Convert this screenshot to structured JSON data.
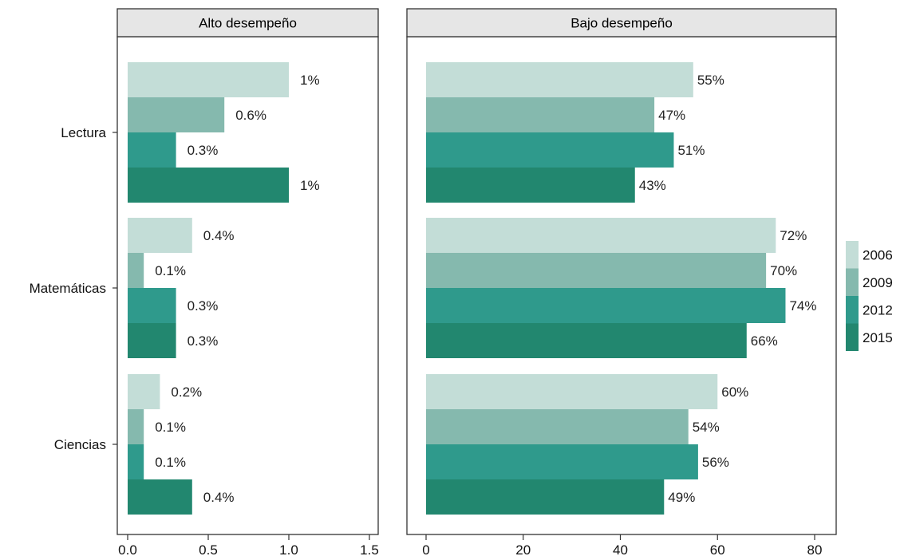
{
  "chart_data": {
    "type": "bar",
    "orientation": "horizontal",
    "categories": [
      "Lectura",
      "Matemáticas",
      "Ciencias"
    ],
    "series_names": [
      "2006",
      "2009",
      "2012",
      "2015"
    ],
    "colors": [
      "#c3ddd7",
      "#85b9ae",
      "#2f9a8c",
      "#22876f"
    ],
    "panels": [
      {
        "title": "Alto desempeño",
        "xlim": [
          0,
          1.5
        ],
        "ticks": [
          0.0,
          0.5,
          1.0,
          1.5
        ],
        "tick_labels": [
          "0.0",
          "0.5",
          "1.0",
          "1.5"
        ],
        "values": [
          [
            1,
            0.6,
            0.3,
            1
          ],
          [
            0.4,
            0.1,
            0.3,
            0.3
          ],
          [
            0.2,
            0.1,
            0.1,
            0.4
          ]
        ],
        "labels": [
          [
            "1%",
            "0.6%",
            "0.3%",
            "1%"
          ],
          [
            "0.4%",
            "0.1%",
            "0.3%",
            "0.3%"
          ],
          [
            "0.2%",
            "0.1%",
            "0.1%",
            "0.4%"
          ]
        ]
      },
      {
        "title": "Bajo desempeño",
        "xlim": [
          0,
          80
        ],
        "ticks": [
          0,
          20,
          40,
          60,
          80
        ],
        "tick_labels": [
          "0",
          "20",
          "40",
          "60",
          "80"
        ],
        "values": [
          [
            55,
            47,
            51,
            43
          ],
          [
            72,
            70,
            74,
            66
          ],
          [
            60,
            54,
            56,
            49
          ]
        ],
        "labels": [
          [
            "55%",
            "47%",
            "51%",
            "43%"
          ],
          [
            "72%",
            "70%",
            "74%",
            "66%"
          ],
          [
            "60%",
            "54%",
            "56%",
            "49%"
          ]
        ]
      }
    ],
    "legend_position": "right"
  }
}
